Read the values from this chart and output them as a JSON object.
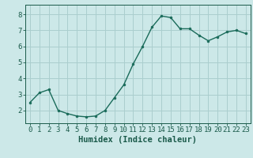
{
  "x": [
    0,
    1,
    2,
    3,
    4,
    5,
    6,
    7,
    8,
    9,
    10,
    11,
    12,
    13,
    14,
    15,
    16,
    17,
    18,
    19,
    20,
    21,
    22,
    23
  ],
  "y": [
    2.5,
    3.1,
    3.3,
    2.0,
    1.8,
    1.65,
    1.6,
    1.65,
    2.0,
    2.8,
    3.6,
    4.9,
    6.0,
    7.2,
    7.9,
    7.8,
    7.1,
    7.1,
    6.7,
    6.35,
    6.6,
    6.9,
    7.0,
    6.8
  ],
  "line_color": "#1a6b5a",
  "marker_color": "#1a6b5a",
  "bg_color": "#cce8e8",
  "grid_color": "#aacece",
  "xlabel": "Humidex (Indice chaleur)",
  "xlim": [
    -0.5,
    23.5
  ],
  "ylim": [
    1.2,
    8.6
  ],
  "yticks": [
    2,
    3,
    4,
    5,
    6,
    7,
    8
  ],
  "xticks": [
    0,
    1,
    2,
    3,
    4,
    5,
    6,
    7,
    8,
    9,
    10,
    11,
    12,
    13,
    14,
    15,
    16,
    17,
    18,
    19,
    20,
    21,
    22,
    23
  ],
  "font_color": "#1a5a4a",
  "tick_fontsize": 6.5,
  "label_fontsize": 7.5
}
